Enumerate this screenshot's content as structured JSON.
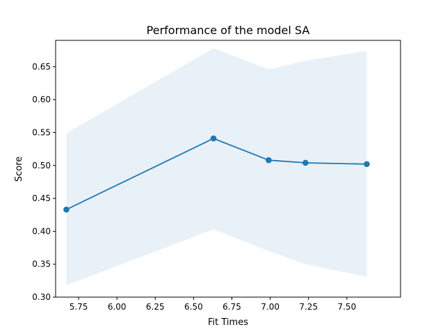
{
  "chart_data": {
    "type": "line",
    "title": "Performance of the model SA",
    "xlabel": "Fit Times",
    "ylabel": "Score",
    "xlim": [
      5.6,
      7.85
    ],
    "ylim": [
      0.3,
      0.69
    ],
    "xticks": [
      5.75,
      6.0,
      6.25,
      6.5,
      6.75,
      7.0,
      7.25,
      7.5
    ],
    "xtick_labels": [
      "5.75",
      "6.00",
      "6.25",
      "6.50",
      "6.75",
      "7.00",
      "7.25",
      "7.50"
    ],
    "yticks": [
      0.3,
      0.35,
      0.4,
      0.45,
      0.5,
      0.55,
      0.6,
      0.65
    ],
    "ytick_labels": [
      "0.30",
      "0.35",
      "0.40",
      "0.45",
      "0.50",
      "0.55",
      "0.60",
      "0.65"
    ],
    "grid": false,
    "legend": "none",
    "series": [
      {
        "x": [
          5.67,
          6.63,
          6.99,
          7.23,
          7.63
        ],
        "y": [
          0.433,
          0.541,
          0.508,
          0.504,
          0.502
        ],
        "band_upper": [
          0.549,
          0.678,
          0.646,
          0.659,
          0.674
        ],
        "band_lower": [
          0.318,
          0.403,
          0.37,
          0.35,
          0.331
        ],
        "color": "#1f77b4",
        "band_color": "#1f77b4",
        "band_opacity": 0.1
      }
    ]
  }
}
